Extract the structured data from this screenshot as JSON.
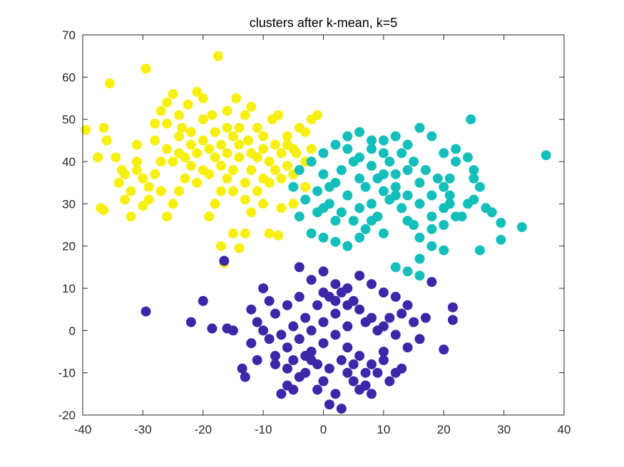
{
  "chart_data": {
    "type": "scatter",
    "title": "clusters after k-mean, k=5",
    "xlabel": "",
    "ylabel": "",
    "xlim": [
      -40,
      40
    ],
    "ylim": [
      -20,
      70
    ],
    "xticks": [
      -40,
      -30,
      -20,
      -10,
      0,
      10,
      20,
      30,
      40
    ],
    "yticks": [
      -20,
      -10,
      0,
      10,
      20,
      30,
      40,
      50,
      60,
      70
    ],
    "grid": false,
    "legend": "none",
    "marker_size_px": 7,
    "series": [
      {
        "color": "#f7ef11",
        "points": [
          [
            -39.5,
            47.5
          ],
          [
            -37.5,
            41
          ],
          [
            -36.5,
            48
          ],
          [
            -35.5,
            58.5
          ],
          [
            -36,
            45
          ],
          [
            -34.5,
            41
          ],
          [
            -33.5,
            38
          ],
          [
            -37,
            29
          ],
          [
            -36.5,
            28.5
          ],
          [
            -33,
            31
          ],
          [
            -32,
            27
          ],
          [
            -31,
            44
          ],
          [
            -30,
            29.5
          ],
          [
            -29.5,
            62
          ],
          [
            -28,
            49
          ],
          [
            -27,
            52
          ],
          [
            -26,
            54
          ],
          [
            -25,
            56
          ],
          [
            -24,
            51
          ],
          [
            -23.5,
            48
          ],
          [
            -22.5,
            53.5
          ],
          [
            -21,
            56.5
          ],
          [
            -20,
            55
          ],
          [
            -18.5,
            51
          ],
          [
            -17.5,
            65
          ],
          [
            -16,
            52
          ],
          [
            -14.5,
            55
          ],
          [
            -13,
            51
          ],
          [
            -12,
            53
          ],
          [
            -11,
            48
          ],
          [
            -10,
            46
          ],
          [
            -8.5,
            50
          ],
          [
            -7.5,
            51
          ],
          [
            -6,
            44
          ],
          [
            -5,
            37
          ],
          [
            -4.5,
            42
          ],
          [
            -3,
            34
          ],
          [
            -5,
            30
          ],
          [
            -7,
            29
          ],
          [
            -7.5,
            22.5
          ],
          [
            -9,
            23
          ],
          [
            -13,
            23
          ],
          [
            -14,
            19.5
          ],
          [
            -15,
            23
          ],
          [
            -17,
            20
          ],
          [
            -16.5,
            16
          ],
          [
            -12,
            28
          ],
          [
            -10,
            30
          ],
          [
            -12.5,
            45
          ],
          [
            -14,
            41
          ],
          [
            -15,
            38
          ],
          [
            -16,
            36
          ],
          [
            -17,
            33
          ],
          [
            -18,
            30
          ],
          [
            -19,
            27
          ],
          [
            -20,
            38
          ],
          [
            -21,
            42
          ],
          [
            -22,
            39
          ],
          [
            -23,
            36
          ],
          [
            -24,
            33
          ],
          [
            -25,
            30
          ],
          [
            -26,
            27
          ],
          [
            -27,
            40
          ],
          [
            -28,
            37
          ],
          [
            -29,
            34
          ],
          [
            -30,
            36
          ],
          [
            -31,
            40
          ],
          [
            -32,
            33
          ],
          [
            -33,
            37
          ],
          [
            -34,
            35
          ],
          [
            -20,
            45
          ],
          [
            -19,
            43
          ],
          [
            -18,
            47
          ],
          [
            -17,
            44
          ],
          [
            -16,
            42
          ],
          [
            -15,
            46
          ],
          [
            -14,
            48
          ],
          [
            -13,
            35
          ],
          [
            -12,
            38
          ],
          [
            -11,
            41
          ],
          [
            -10,
            36
          ],
          [
            -9,
            40
          ],
          [
            -8,
            38
          ],
          [
            -7,
            42
          ],
          [
            -6,
            39
          ],
          [
            -22,
            44
          ],
          [
            -24,
            46
          ],
          [
            -26,
            43
          ],
          [
            -28,
            45
          ],
          [
            -25,
            40
          ],
          [
            -23,
            41
          ],
          [
            -21,
            35
          ],
          [
            -19,
            37
          ],
          [
            -17,
            39
          ],
          [
            -15,
            33
          ],
          [
            -13,
            31
          ],
          [
            -11,
            33
          ],
          [
            -9,
            35
          ],
          [
            -7,
            36
          ],
          [
            -27,
            33
          ],
          [
            -29,
            31
          ],
          [
            -31,
            38
          ],
          [
            -26,
            49
          ],
          [
            -24,
            42
          ],
          [
            -22,
            47
          ],
          [
            -20,
            50
          ],
          [
            -18,
            41
          ],
          [
            -16,
            48
          ],
          [
            -14,
            44
          ],
          [
            -12,
            42
          ],
          [
            -10,
            43
          ],
          [
            -8,
            44
          ],
          [
            -6,
            46
          ],
          [
            -5,
            43
          ],
          [
            -3,
            47
          ],
          [
            -2,
            50
          ],
          [
            -1,
            51
          ],
          [
            -4,
            48
          ],
          [
            -3,
            40
          ],
          [
            -2,
            43
          ]
        ]
      },
      {
        "color": "#14bfbb",
        "points": [
          [
            37,
            41.5
          ],
          [
            33,
            24.5
          ],
          [
            29.5,
            25.5
          ],
          [
            29.5,
            21.5
          ],
          [
            26,
            19
          ],
          [
            27,
            29
          ],
          [
            28,
            28
          ],
          [
            25,
            31
          ],
          [
            25,
            36
          ],
          [
            24.5,
            50
          ],
          [
            22,
            43
          ],
          [
            21,
            36
          ],
          [
            21,
            32
          ],
          [
            20,
            25
          ],
          [
            20,
            19
          ],
          [
            18,
            20
          ],
          [
            16,
            17
          ],
          [
            16,
            13
          ],
          [
            14,
            14
          ],
          [
            12,
            15
          ],
          [
            10,
            23
          ],
          [
            8,
            26
          ],
          [
            6,
            22
          ],
          [
            4,
            20
          ],
          [
            2,
            21
          ],
          [
            0,
            22
          ],
          [
            -2,
            23
          ],
          [
            -4,
            27
          ],
          [
            -5,
            34
          ],
          [
            -4,
            38
          ],
          [
            -2,
            40
          ],
          [
            0,
            42
          ],
          [
            2,
            44
          ],
          [
            4,
            46
          ],
          [
            6,
            47
          ],
          [
            8,
            45
          ],
          [
            10,
            42
          ],
          [
            12,
            46
          ],
          [
            14,
            44
          ],
          [
            16,
            48
          ],
          [
            18,
            46
          ],
          [
            20,
            42
          ],
          [
            22,
            40
          ],
          [
            24,
            41
          ],
          [
            25,
            38
          ],
          [
            26,
            34
          ],
          [
            24,
            30
          ],
          [
            22,
            27
          ],
          [
            20,
            29
          ],
          [
            18,
            32
          ],
          [
            16,
            35
          ],
          [
            14,
            38
          ],
          [
            12,
            37
          ],
          [
            10,
            33
          ],
          [
            8,
            30
          ],
          [
            6,
            29
          ],
          [
            4,
            32
          ],
          [
            2,
            35
          ],
          [
            0,
            37
          ],
          [
            -1,
            33
          ],
          [
            1,
            30
          ],
          [
            3,
            28
          ],
          [
            5,
            26
          ],
          [
            7,
            34
          ],
          [
            9,
            36
          ],
          [
            11,
            40
          ],
          [
            13,
            42
          ],
          [
            15,
            40
          ],
          [
            17,
            38
          ],
          [
            19,
            36
          ],
          [
            21,
            30
          ],
          [
            23,
            27
          ],
          [
            15,
            25
          ],
          [
            13,
            29
          ],
          [
            11,
            31
          ],
          [
            9,
            27
          ],
          [
            7,
            24
          ],
          [
            5,
            40
          ],
          [
            3,
            38
          ],
          [
            1,
            34
          ],
          [
            -1,
            28
          ],
          [
            -3,
            31
          ],
          [
            6,
            36
          ],
          [
            8,
            39
          ],
          [
            10,
            37
          ],
          [
            12,
            34
          ],
          [
            14,
            32
          ],
          [
            16,
            30
          ],
          [
            18,
            27
          ],
          [
            20,
            34
          ],
          [
            4,
            43
          ],
          [
            6,
            41
          ],
          [
            8,
            43
          ],
          [
            10,
            45
          ],
          [
            12,
            32
          ],
          [
            14,
            26
          ],
          [
            16,
            22
          ],
          [
            18,
            24
          ],
          [
            2,
            26
          ],
          [
            0,
            29
          ]
        ]
      },
      {
        "color": "#3e26a8",
        "points": [
          [
            -29.5,
            4.5
          ],
          [
            -22,
            2
          ],
          [
            -20,
            7
          ],
          [
            -18.5,
            0.5
          ],
          [
            -16.5,
            16.5
          ],
          [
            -16,
            0.5
          ],
          [
            -15,
            0
          ],
          [
            -13.5,
            -9
          ],
          [
            -13,
            -11
          ],
          [
            -12,
            5
          ],
          [
            -11,
            2
          ],
          [
            -10,
            10
          ],
          [
            -9,
            -2
          ],
          [
            -8,
            -8
          ],
          [
            -7,
            -15
          ],
          [
            -6,
            -13
          ],
          [
            -5,
            -14
          ],
          [
            -4,
            15
          ],
          [
            -3,
            -10
          ],
          [
            -2,
            -7
          ],
          [
            -1,
            -14
          ],
          [
            0,
            -12
          ],
          [
            1,
            -17.5
          ],
          [
            2,
            -15
          ],
          [
            3,
            -18.5
          ],
          [
            4,
            -10
          ],
          [
            5,
            -12
          ],
          [
            6,
            -14
          ],
          [
            7,
            -13
          ],
          [
            8,
            -15
          ],
          [
            9,
            -10
          ],
          [
            10,
            -7
          ],
          [
            11,
            -12
          ],
          [
            12,
            -10
          ],
          [
            13,
            -9
          ],
          [
            14,
            -4
          ],
          [
            15,
            2
          ],
          [
            16,
            -2
          ],
          [
            17,
            3
          ],
          [
            18,
            11.5
          ],
          [
            20,
            -4.5
          ],
          [
            21.5,
            5.5
          ],
          [
            21.5,
            2.5
          ],
          [
            -2,
            12
          ],
          [
            0,
            14
          ],
          [
            2,
            11
          ],
          [
            4,
            10
          ],
          [
            6,
            13
          ],
          [
            8,
            11
          ],
          [
            10,
            9
          ],
          [
            12,
            8
          ],
          [
            14,
            6
          ],
          [
            -4,
            8
          ],
          [
            -6,
            6
          ],
          [
            -8,
            4
          ],
          [
            -10,
            0
          ],
          [
            -12,
            -3
          ],
          [
            -6,
            -4
          ],
          [
            -4,
            -2
          ],
          [
            -2,
            0
          ],
          [
            0,
            2
          ],
          [
            2,
            4
          ],
          [
            4,
            6
          ],
          [
            6,
            5
          ],
          [
            8,
            3
          ],
          [
            10,
            1
          ],
          [
            12,
            -1
          ],
          [
            -8,
            -6
          ],
          [
            -6,
            -9
          ],
          [
            -4,
            -11
          ],
          [
            -2,
            -5
          ],
          [
            0,
            -3
          ],
          [
            2,
            -1
          ],
          [
            4,
            -4
          ],
          [
            6,
            -6
          ],
          [
            8,
            -8
          ],
          [
            10,
            -5
          ],
          [
            -1,
            6
          ],
          [
            1,
            8
          ],
          [
            3,
            9
          ],
          [
            5,
            7
          ],
          [
            7,
            2
          ],
          [
            9,
            0
          ],
          [
            11,
            3
          ],
          [
            -3,
            3
          ],
          [
            -5,
            1
          ],
          [
            -7,
            -1
          ],
          [
            -9,
            7
          ],
          [
            -11,
            -7
          ],
          [
            13,
            4
          ],
          [
            1,
            -9
          ],
          [
            3,
            -7
          ],
          [
            5,
            -8
          ],
          [
            7,
            -10
          ],
          [
            -1,
            -8
          ],
          [
            -3,
            -6
          ],
          [
            -5,
            -7
          ],
          [
            0,
            9
          ],
          [
            2,
            7
          ],
          [
            4,
            1
          ]
        ]
      }
    ]
  }
}
